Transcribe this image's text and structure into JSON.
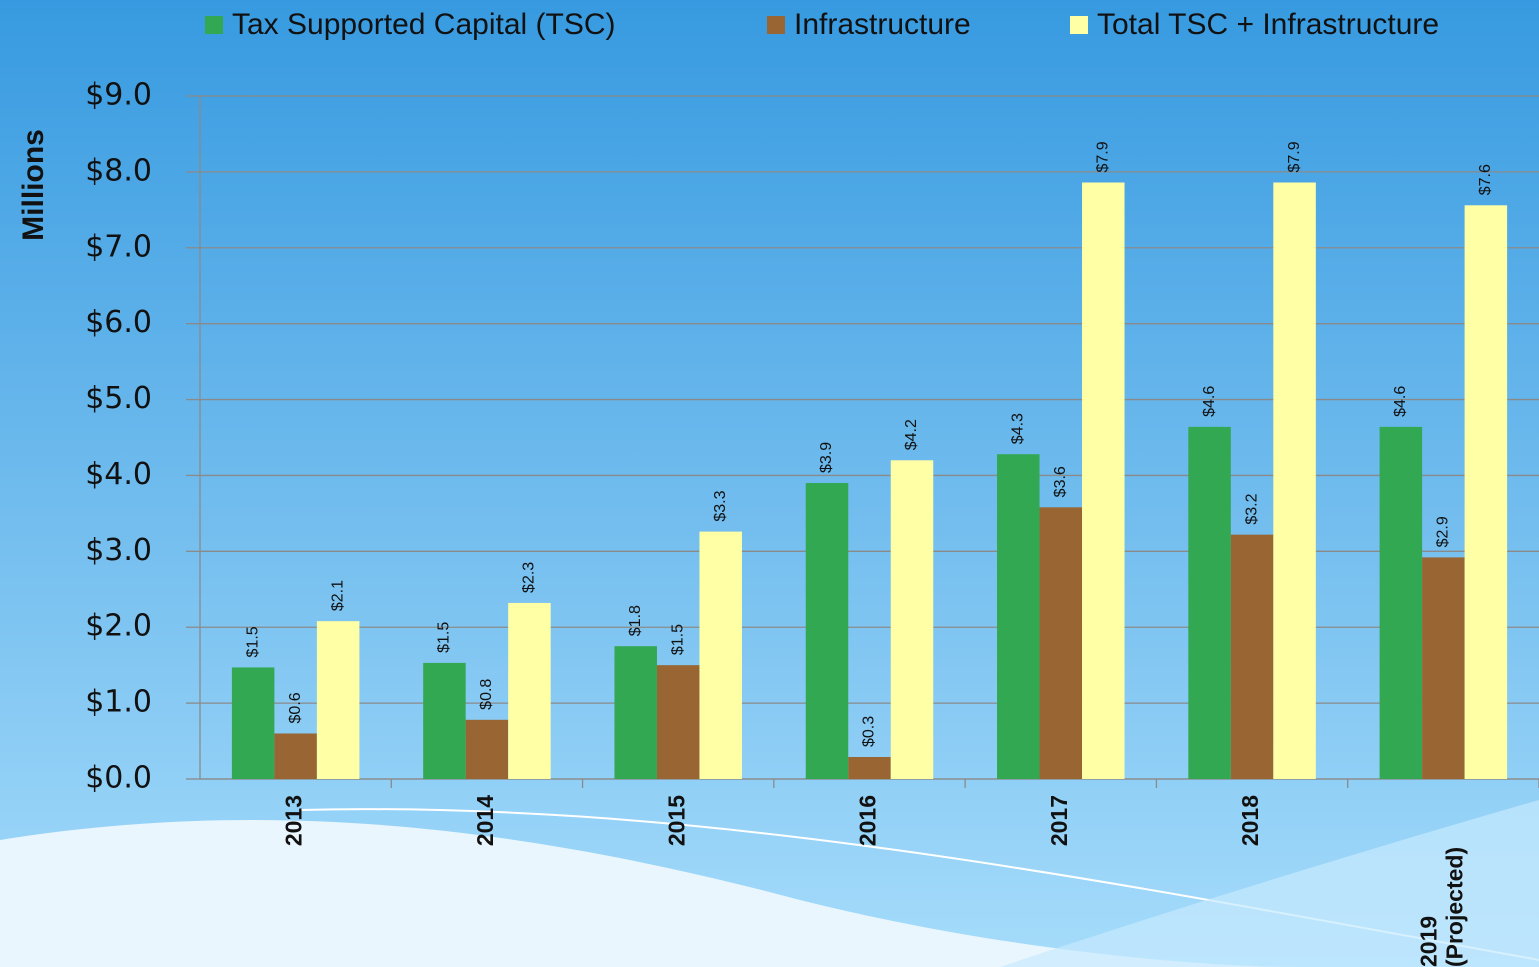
{
  "chart_data": {
    "type": "bar",
    "y_label": "Millions",
    "categories": [
      "2013",
      "2014",
      "2015",
      "2016",
      "2017",
      "2018",
      "2019 (Projected)"
    ],
    "series": [
      {
        "name": "Tax Supported Capital (TSC)",
        "color": "#33a852",
        "values": [
          1.47,
          1.53,
          1.75,
          3.9,
          4.28,
          4.64,
          4.64
        ],
        "value_labels": [
          "$1.5",
          "$1.5",
          "$1.8",
          "$3.9",
          "$4.3",
          "$4.6",
          "$4.6"
        ]
      },
      {
        "name": "Infrastructure",
        "color": "#996633",
        "values": [
          0.6,
          0.78,
          1.5,
          0.29,
          3.58,
          3.22,
          2.92
        ],
        "value_labels": [
          "$0.6",
          "$0.8",
          "$1.5",
          "$0.3",
          "$3.6",
          "$3.2",
          "$2.9"
        ]
      },
      {
        "name": "Total TSC + Infrastructure",
        "color": "#ffffa6",
        "values": [
          2.08,
          2.32,
          3.26,
          4.2,
          7.86,
          7.86,
          7.56
        ],
        "value_labels": [
          "$2.1",
          "$2.3",
          "$3.3",
          "$4.2",
          "$7.9",
          "$7.9",
          "$7.6"
        ]
      }
    ],
    "ylim": [
      0,
      9
    ],
    "yticks": [
      {
        "value": 0,
        "label": "$0.0"
      },
      {
        "value": 1,
        "label": "$1.0"
      },
      {
        "value": 2,
        "label": "$2.0"
      },
      {
        "value": 3,
        "label": "$3.0"
      },
      {
        "value": 4,
        "label": "$4.0"
      },
      {
        "value": 5,
        "label": "$5.0"
      },
      {
        "value": 6,
        "label": "$6.0"
      },
      {
        "value": 7,
        "label": "$7.0"
      },
      {
        "value": 8,
        "label": "$8.0"
      },
      {
        "value": 9,
        "label": "$9.0"
      }
    ],
    "grid": true,
    "legend": "top"
  }
}
